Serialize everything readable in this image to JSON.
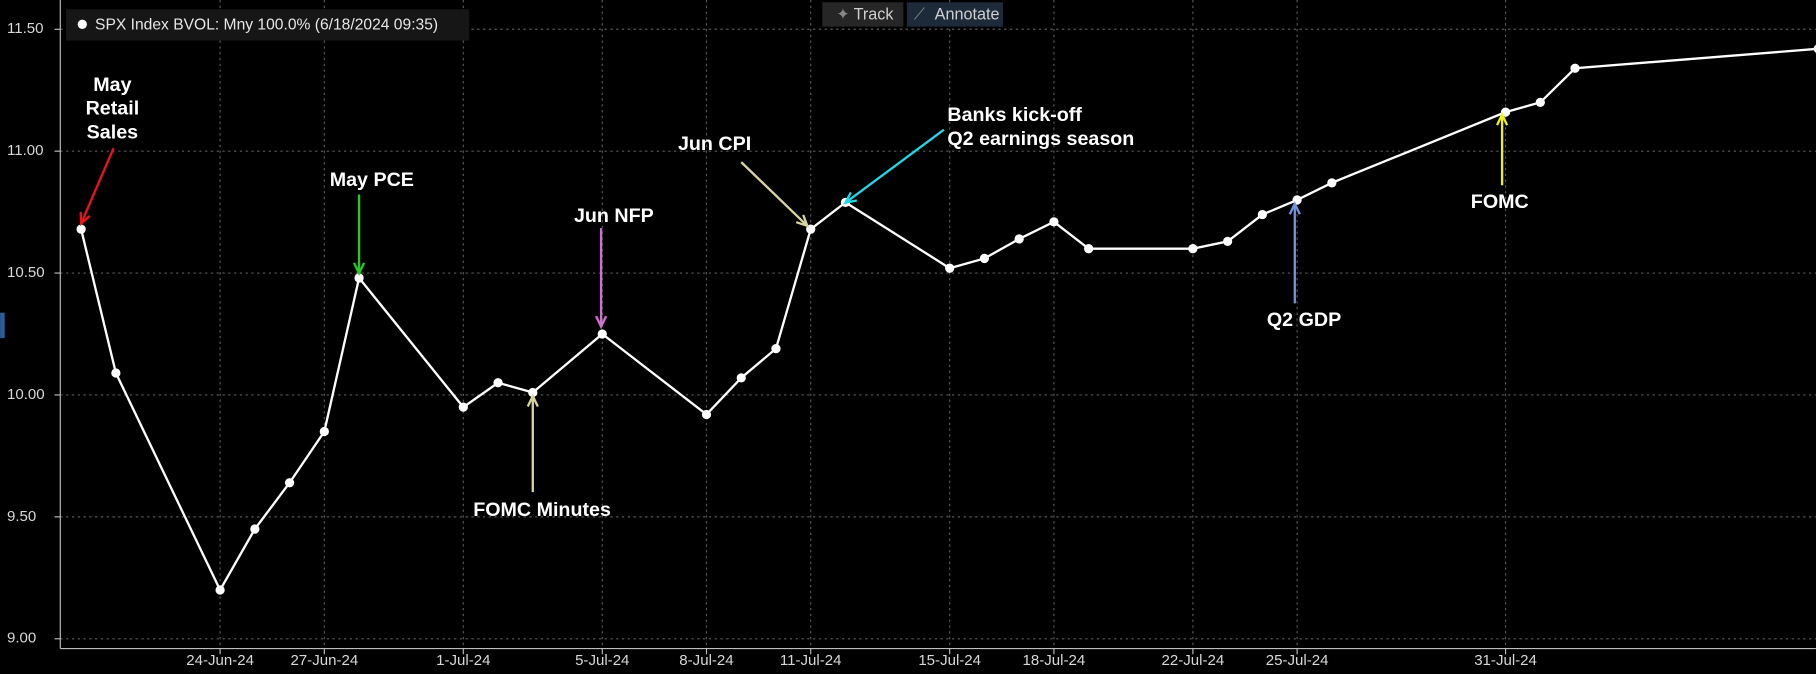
{
  "chart_data": {
    "type": "line",
    "series": [
      {
        "name": "SPX Index BVOL: Mny 100.0% (6/18/2024 09:35)",
        "color": "#ffffff",
        "x": [
          "2024-06-20",
          "2024-06-21",
          "2024-06-24",
          "2024-06-25",
          "2024-06-26",
          "2024-06-27",
          "2024-06-28",
          "2024-07-01",
          "2024-07-02",
          "2024-07-03",
          "2024-07-05",
          "2024-07-08",
          "2024-07-09",
          "2024-07-10",
          "2024-07-11",
          "2024-07-12",
          "2024-07-15",
          "2024-07-16",
          "2024-07-17",
          "2024-07-18",
          "2024-07-19",
          "2024-07-22",
          "2024-07-23",
          "2024-07-24",
          "2024-07-25",
          "2024-07-26",
          "2024-07-31",
          "2024-08-01",
          "2024-08-02",
          "2024-08-09"
        ],
        "values": [
          10.68,
          10.09,
          9.2,
          9.45,
          9.64,
          9.85,
          10.48,
          9.95,
          10.05,
          10.01,
          10.25,
          9.92,
          10.07,
          10.19,
          10.68,
          10.79,
          10.52,
          10.56,
          10.64,
          10.71,
          10.6,
          10.6,
          10.63,
          10.74,
          10.8,
          10.87,
          11.16,
          11.2,
          11.34,
          11.42
        ]
      }
    ],
    "xlim": [
      "2024-06-19",
      "2024-08-09"
    ],
    "xticks": [
      {
        "value": "2024-06-24",
        "label": "24-Jun-24"
      },
      {
        "value": "2024-06-27",
        "label": "27-Jun-24"
      },
      {
        "value": "2024-07-01",
        "label": "1-Jul-24"
      },
      {
        "value": "2024-07-05",
        "label": "5-Jul-24"
      },
      {
        "value": "2024-07-08",
        "label": "8-Jul-24"
      },
      {
        "value": "2024-07-11",
        "label": "11-Jul-24"
      },
      {
        "value": "2024-07-15",
        "label": "15-Jul-24"
      },
      {
        "value": "2024-07-18",
        "label": "18-Jul-24"
      },
      {
        "value": "2024-07-22",
        "label": "22-Jul-24"
      },
      {
        "value": "2024-07-25",
        "label": "25-Jul-24"
      },
      {
        "value": "2024-07-31",
        "label": "31-Jul-24"
      }
    ],
    "ylim": [
      8.96,
      11.62
    ],
    "yticks": [
      {
        "value": 9.0,
        "label": "9.00"
      },
      {
        "value": 9.5,
        "label": "9.50"
      },
      {
        "value": 10.0,
        "label": "10.00"
      },
      {
        "value": 10.5,
        "label": "10.50"
      },
      {
        "value": 11.0,
        "label": "11.00"
      },
      {
        "value": 11.5,
        "label": "11.50"
      }
    ],
    "grid": true,
    "annotations": [
      {
        "text": [
          "May",
          "Retail",
          "Sales"
        ],
        "color": "#e8141a"
      },
      {
        "text": [
          "May PCE"
        ],
        "color": "#22cc22"
      },
      {
        "text": [
          "Jun NFP"
        ],
        "color": "#d070d0"
      },
      {
        "text": [
          "FOMC Minutes"
        ],
        "color": "#d8d4a0"
      },
      {
        "text": [
          "Jun CPI"
        ],
        "color": "#d8d4a0"
      },
      {
        "text": [
          "Banks kick-off",
          "Q2 earnings season"
        ],
        "color": "#20d8e8"
      },
      {
        "text": [
          "Q2 GDP"
        ],
        "color": "#7094e0"
      },
      {
        "text": [
          "FOMC"
        ],
        "color": "#f0f020"
      }
    ],
    "toolbar": [
      "Track",
      "Annotate"
    ]
  }
}
